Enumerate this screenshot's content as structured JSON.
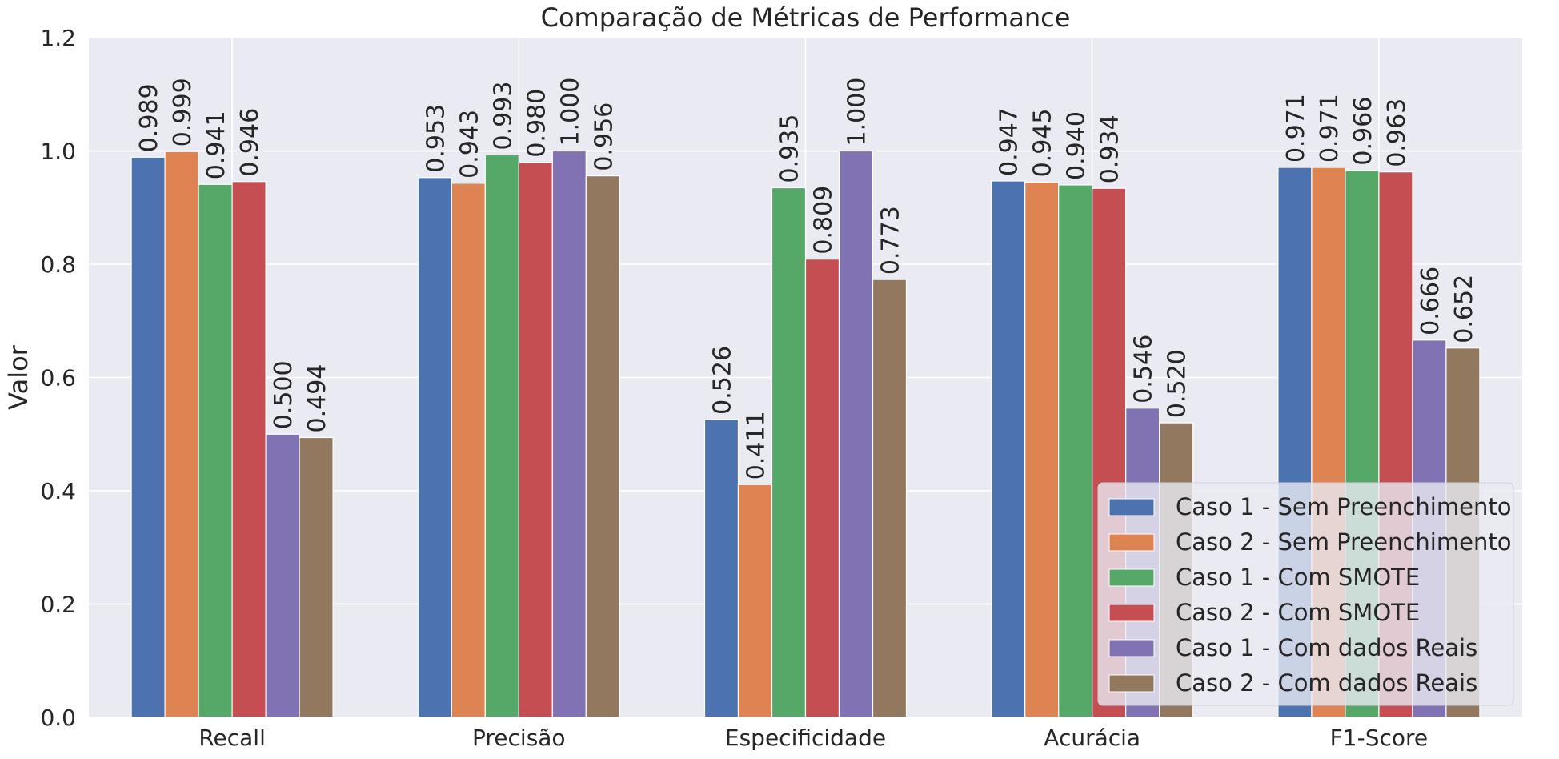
{
  "chart_data": {
    "type": "bar",
    "title": "Comparação de Métricas de Performance",
    "xlabel": "",
    "ylabel": "Valor",
    "ylim": [
      0,
      1.2
    ],
    "yticks": [
      "0.0",
      "0.2",
      "0.4",
      "0.6",
      "0.8",
      "1.0",
      "1.2"
    ],
    "grid": true,
    "legend_position": "bottom-right",
    "categories": [
      "Recall",
      "Precisão",
      "Especificidade",
      "Acurácia",
      "F1-Score"
    ],
    "series": [
      {
        "name": "Caso 1 - Sem Preenchimento",
        "color": "#4c72b0",
        "values": [
          0.989,
          0.953,
          0.526,
          0.947,
          0.971
        ],
        "labels": [
          "0.989",
          "0.953",
          "0.526",
          "0.947",
          "0.971"
        ]
      },
      {
        "name": "Caso 2 - Sem Preenchimento",
        "color": "#dd8452",
        "values": [
          0.999,
          0.943,
          0.411,
          0.945,
          0.971
        ],
        "labels": [
          "0.999",
          "0.943",
          "0.411",
          "0.945",
          "0.971"
        ]
      },
      {
        "name": "Caso 1 - Com SMOTE",
        "color": "#55a868",
        "values": [
          0.941,
          0.993,
          0.935,
          0.94,
          0.966
        ],
        "labels": [
          "0.941",
          "0.993",
          "0.935",
          "0.940",
          "0.966"
        ]
      },
      {
        "name": "Caso 2 - Com SMOTE",
        "color": "#c44e52",
        "values": [
          0.946,
          0.98,
          0.809,
          0.934,
          0.963
        ],
        "labels": [
          "0.946",
          "0.980",
          "0.809",
          "0.934",
          "0.963"
        ]
      },
      {
        "name": "Caso 1 - Com dados Reais",
        "color": "#8172b3",
        "values": [
          0.5,
          1.0,
          1.0,
          0.546,
          0.666
        ],
        "labels": [
          "0.500",
          "1.000",
          "1.000",
          "0.546",
          "0.666"
        ]
      },
      {
        "name": "Caso 2 - Com dados Reais",
        "color": "#937860",
        "values": [
          0.494,
          0.956,
          0.773,
          0.52,
          0.652
        ],
        "labels": [
          "0.494",
          "0.956",
          "0.773",
          "0.520",
          "0.652"
        ]
      }
    ]
  }
}
